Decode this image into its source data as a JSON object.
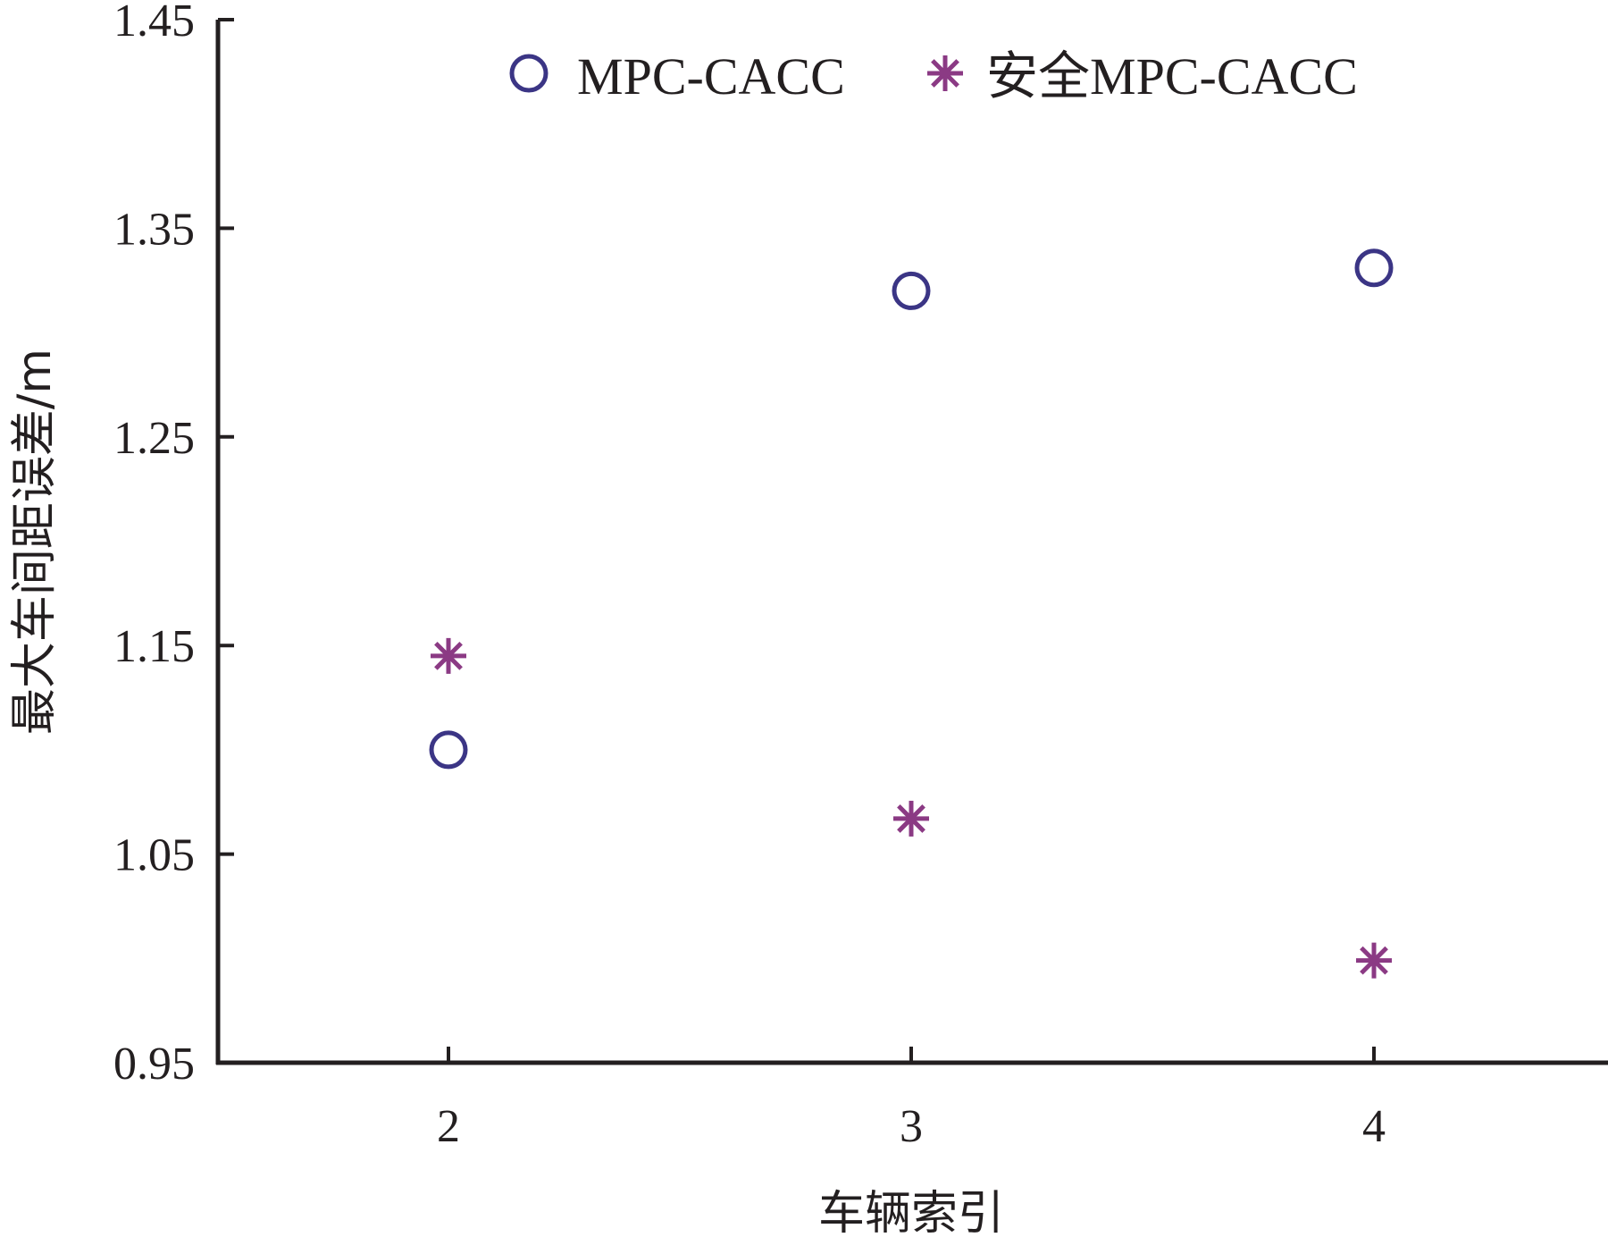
{
  "chart_data": {
    "type": "scatter",
    "title": "",
    "xlabel": "车辆索引",
    "ylabel": "最大车间距误差/m",
    "x_ticks": [
      "2",
      "3",
      "4"
    ],
    "y_ticks": [
      "0.95",
      "1.05",
      "1.15",
      "1.25",
      "1.35",
      "1.45"
    ],
    "xlim": [
      1.5,
      4.5
    ],
    "ylim": [
      0.95,
      1.45
    ],
    "grid": false,
    "legend_position": "top",
    "series": [
      {
        "name": "MPC-CACC",
        "marker": "circle",
        "color": "#3b3585",
        "points": [
          {
            "x": 2,
            "y": 1.1
          },
          {
            "x": 3,
            "y": 1.32
          },
          {
            "x": 4,
            "y": 1.331
          }
        ]
      },
      {
        "name": "安全MPC-CACC",
        "marker": "asterisk",
        "color": "#8b3a84",
        "points": [
          {
            "x": 2,
            "y": 1.145
          },
          {
            "x": 3,
            "y": 1.067
          },
          {
            "x": 4,
            "y": 0.999
          }
        ]
      }
    ]
  }
}
